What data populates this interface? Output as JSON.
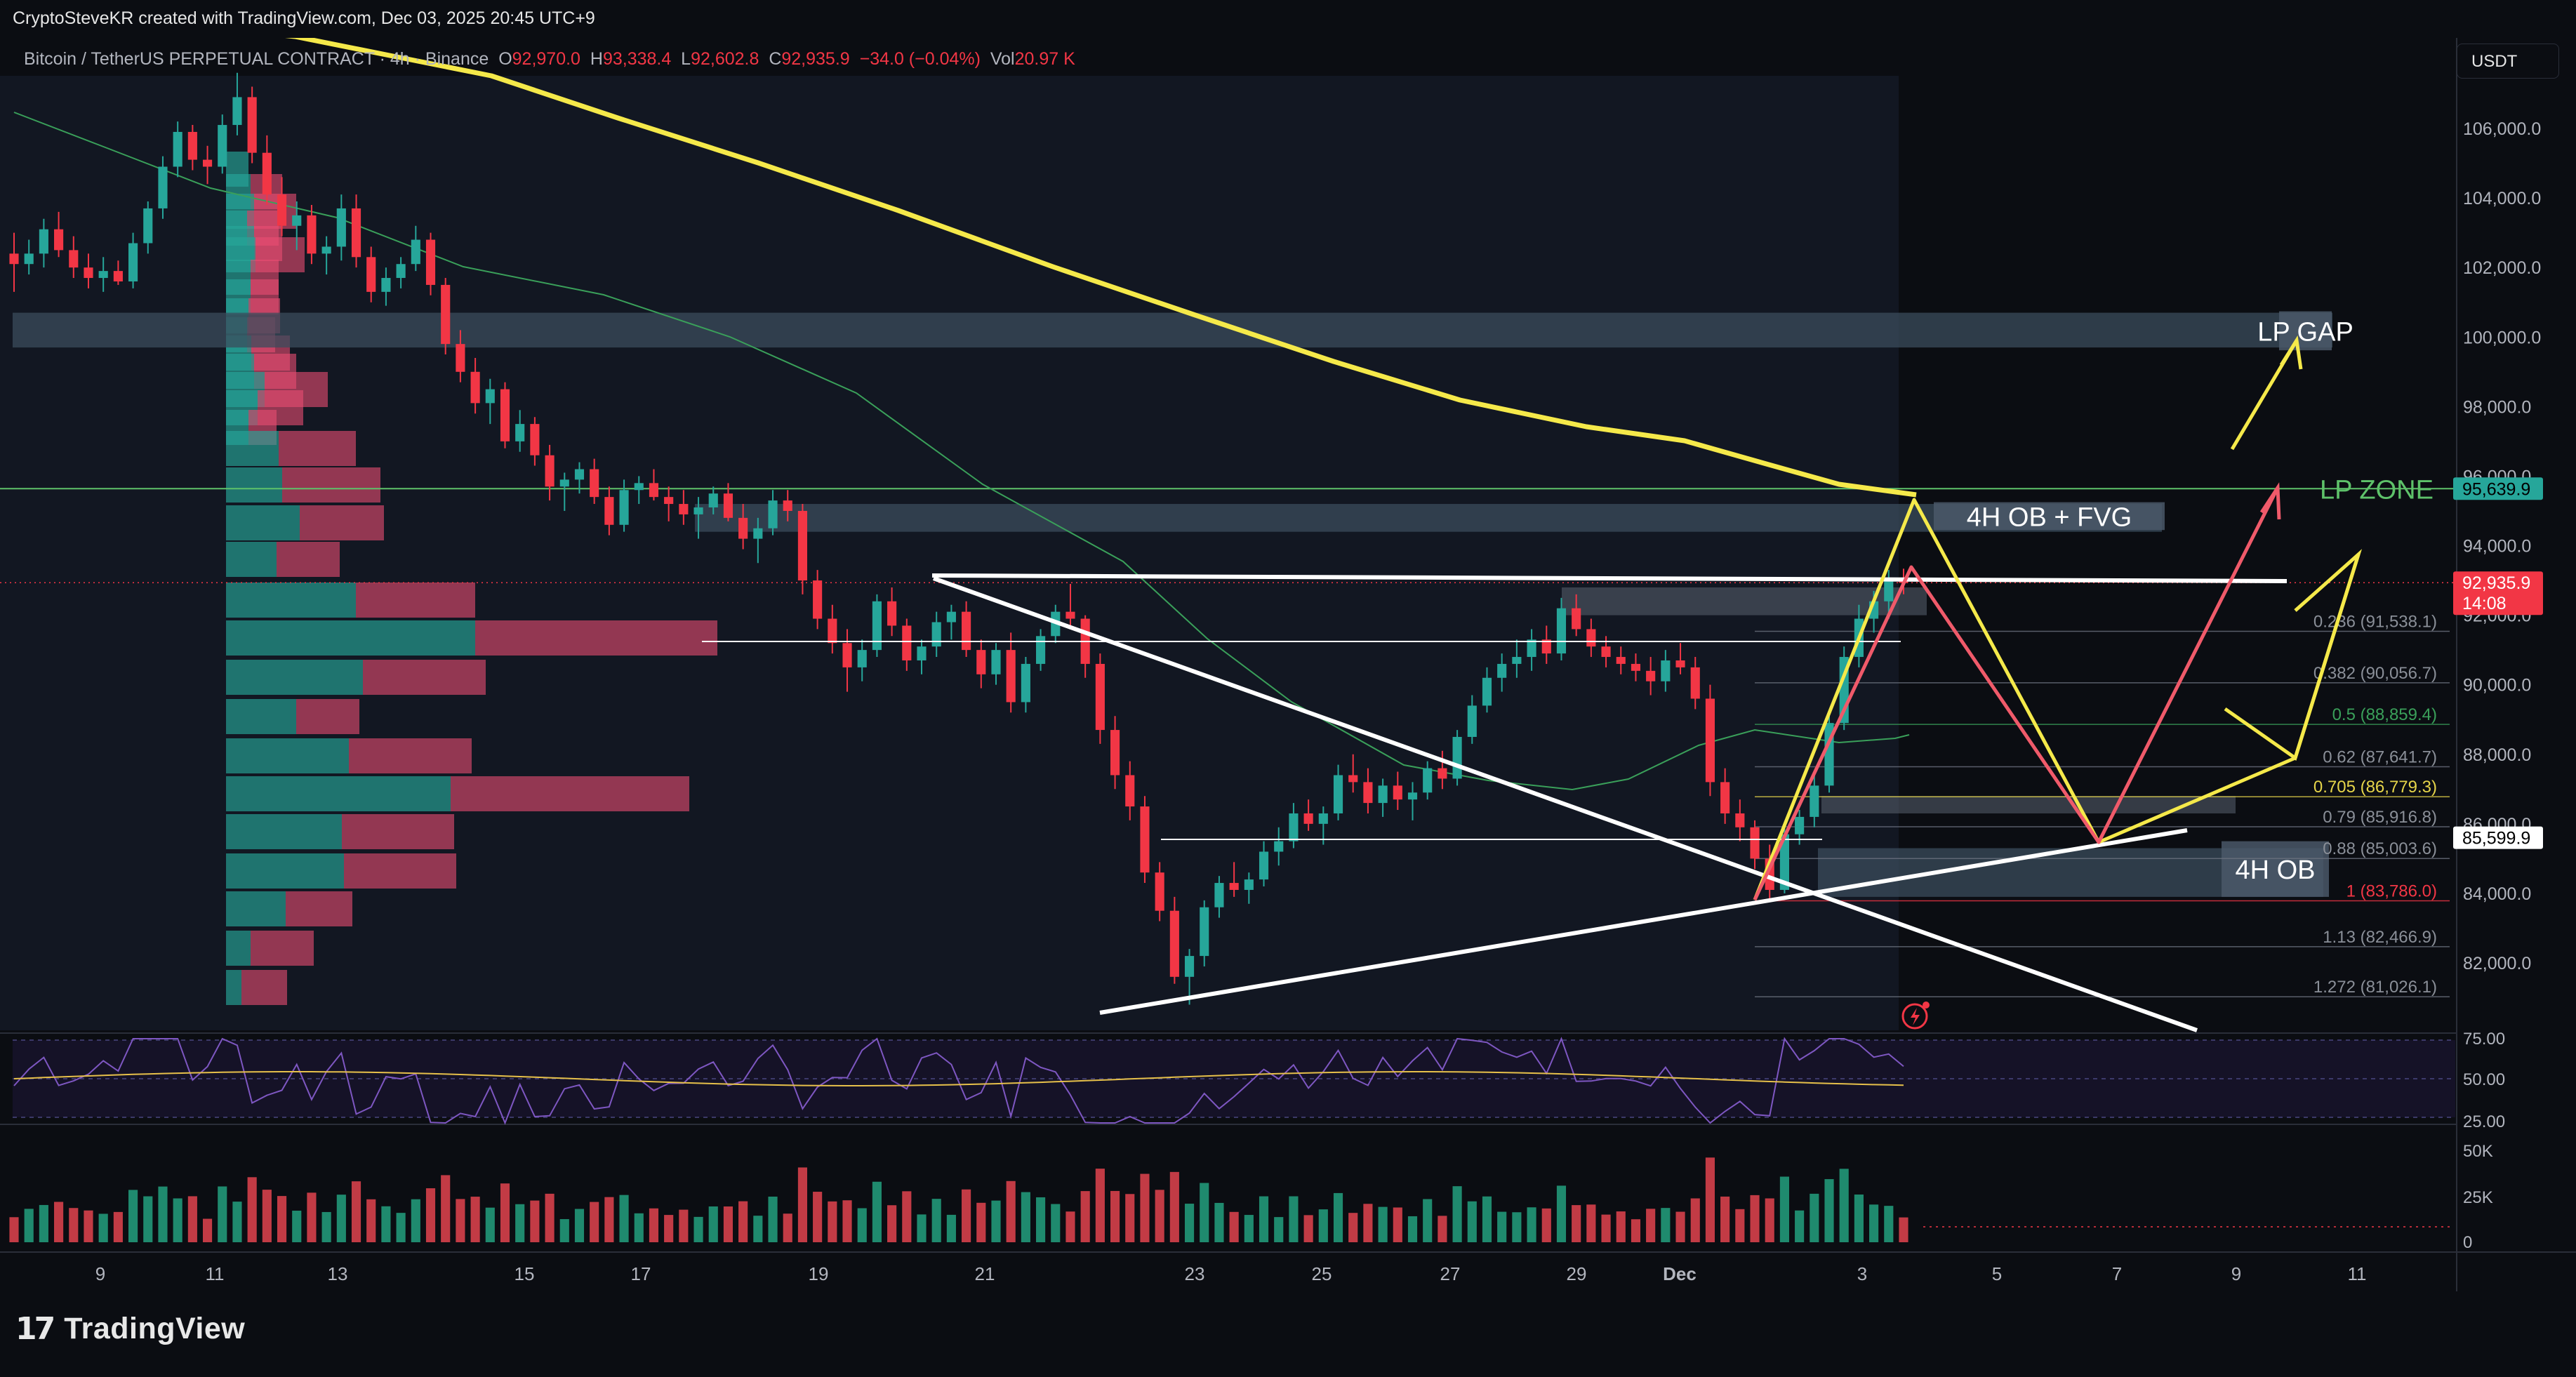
{
  "header": {
    "credit": "CryptoSteveKR created with TradingView.com, Dec 03, 2025 20:45 UTC+9"
  },
  "symbol": {
    "name": "Bitcoin / TetherUS PERPETUAL CONTRACT · 4h · Binance",
    "o_label": "O",
    "o": "92,970.0",
    "h_label": "H",
    "h": "93,338.4",
    "l_label": "L",
    "l": "92,602.8",
    "c_label": "C",
    "c": "92,935.9",
    "change": "−34.0 (−0.04%)",
    "vol_label": "Vol",
    "vol": "20.97 K"
  },
  "currency": "USDT",
  "footer": {
    "brand": "TradingView"
  },
  "colors": {
    "up": "#26a69a",
    "down": "#f23645",
    "ema": "#f5e94a",
    "sma": "#3aa05a",
    "lp_zone": "#5ec26a"
  },
  "chart_data": {
    "type": "candlestick",
    "price_axis": {
      "ticks": [
        "106,000.0",
        "104,000.0",
        "102,000.0",
        "100,000.0",
        "98,000.0",
        "96,000.0",
        "94,000.0",
        "92,000.0",
        "90,000.0",
        "88,000.0",
        "86,000.0",
        "84,000.0",
        "82,000.0"
      ],
      "range": [
        80500,
        107600
      ]
    },
    "time_axis": {
      "ticks": [
        "9",
        "11",
        "13",
        "15",
        "17",
        "19",
        "21",
        "23",
        "25",
        "27",
        "29",
        "Dec",
        "3",
        "5",
        "7",
        "9",
        "11"
      ]
    },
    "price_labels": [
      {
        "text": "95,639.9",
        "style": "green"
      },
      {
        "text": "92,935.9",
        "sub": "14:08",
        "style": "red"
      },
      {
        "text": "85,599.9",
        "style": "white"
      }
    ],
    "zones": [
      {
        "label": "LP GAP",
        "from": 99700,
        "to": 100700
      },
      {
        "label": "4H OB + FVG",
        "from": 94400,
        "to": 95200
      },
      {
        "label": "4H OB",
        "from": 83900,
        "to": 85300
      }
    ],
    "level_line": {
      "label": "LP ZONE",
      "price": 95639.9
    },
    "fib_levels": [
      {
        "level": "0.236",
        "price": "91,538.1"
      },
      {
        "level": "0.382",
        "price": "90,056.7"
      },
      {
        "level": "0.5",
        "price": "88,859.4"
      },
      {
        "level": "0.62",
        "price": "87,641.7"
      },
      {
        "level": "0.705",
        "price": "86,779.3"
      },
      {
        "level": "0.79",
        "price": "85,916.8"
      },
      {
        "level": "0.88",
        "price": "85,003.6"
      },
      {
        "level": "1",
        "price": "83,786.0"
      },
      {
        "level": "1.13",
        "price": "82,466.9"
      },
      {
        "level": "1.272",
        "price": "81,026.1"
      }
    ],
    "candles_ohlc": [
      [
        102400,
        103000,
        101300,
        102100
      ],
      [
        102100,
        102800,
        101800,
        102400
      ],
      [
        102400,
        103400,
        102000,
        103100
      ],
      [
        103100,
        103600,
        102300,
        102500
      ],
      [
        102500,
        102900,
        101700,
        102000
      ],
      [
        102000,
        102400,
        101400,
        101700
      ],
      [
        101700,
        102300,
        101300,
        101900
      ],
      [
        101900,
        102200,
        101500,
        101600
      ],
      [
        101600,
        103000,
        101400,
        102700
      ],
      [
        102700,
        103900,
        102400,
        103700
      ],
      [
        103700,
        105200,
        103400,
        104900
      ],
      [
        104900,
        106200,
        104600,
        105900
      ],
      [
        105900,
        106100,
        104800,
        105100
      ],
      [
        105100,
        105500,
        104400,
        104900
      ],
      [
        104900,
        106400,
        104700,
        106100
      ],
      [
        106100,
        107600,
        105800,
        106900
      ],
      [
        106900,
        107200,
        105000,
        105300
      ],
      [
        105300,
        105800,
        103800,
        104100
      ],
      [
        104100,
        104600,
        102900,
        103200
      ],
      [
        103200,
        103900,
        102500,
        103500
      ],
      [
        103500,
        103800,
        102100,
        102400
      ],
      [
        102400,
        102900,
        101800,
        102600
      ],
      [
        102600,
        104100,
        102200,
        103700
      ],
      [
        103700,
        104100,
        102000,
        102300
      ],
      [
        102300,
        102600,
        101000,
        101300
      ],
      [
        101300,
        102000,
        100900,
        101700
      ],
      [
        101700,
        102300,
        101400,
        102100
      ],
      [
        102100,
        103200,
        101900,
        102800
      ],
      [
        102800,
        103000,
        101200,
        101500
      ],
      [
        101500,
        101700,
        99500,
        99800
      ],
      [
        99800,
        100200,
        98700,
        99000
      ],
      [
        99000,
        99400,
        97800,
        98100
      ],
      [
        98100,
        98800,
        97500,
        98500
      ],
      [
        98500,
        98700,
        96800,
        97000
      ],
      [
        97000,
        97900,
        96700,
        97500
      ],
      [
        97500,
        97700,
        96300,
        96600
      ],
      [
        96600,
        96900,
        95300,
        95700
      ],
      [
        95700,
        96100,
        95000,
        95900
      ],
      [
        95900,
        96400,
        95500,
        96200
      ],
      [
        96200,
        96500,
        95200,
        95400
      ],
      [
        95400,
        95700,
        94300,
        94600
      ],
      [
        94600,
        95900,
        94400,
        95600
      ],
      [
        95600,
        96000,
        95200,
        95800
      ],
      [
        95800,
        96200,
        95300,
        95400
      ],
      [
        95400,
        95700,
        94700,
        95200
      ],
      [
        95200,
        95600,
        94600,
        94900
      ],
      [
        94900,
        95400,
        94200,
        95100
      ],
      [
        95100,
        95700,
        94900,
        95500
      ],
      [
        95500,
        95800,
        94700,
        94800
      ],
      [
        94800,
        95200,
        93900,
        94200
      ],
      [
        94200,
        94800,
        93500,
        94500
      ],
      [
        94500,
        95600,
        94300,
        95300
      ],
      [
        95300,
        95600,
        94700,
        95000
      ],
      [
        95000,
        95200,
        92600,
        93000
      ],
      [
        93000,
        93300,
        91600,
        91900
      ],
      [
        91900,
        92300,
        90900,
        91200
      ],
      [
        91200,
        91600,
        89800,
        90500
      ],
      [
        90500,
        91300,
        90100,
        91000
      ],
      [
        91000,
        92600,
        90800,
        92400
      ],
      [
        92400,
        92800,
        91400,
        91700
      ],
      [
        91700,
        91900,
        90400,
        90700
      ],
      [
        90700,
        91300,
        90300,
        91100
      ],
      [
        91100,
        92100,
        90800,
        91800
      ],
      [
        91800,
        92300,
        91300,
        92100
      ],
      [
        92100,
        92400,
        90800,
        91000
      ],
      [
        91000,
        91300,
        89900,
        90300
      ],
      [
        90300,
        91200,
        90000,
        91000
      ],
      [
        91000,
        91500,
        89200,
        89500
      ],
      [
        89500,
        90800,
        89200,
        90600
      ],
      [
        90600,
        91600,
        90400,
        91400
      ],
      [
        91400,
        92300,
        91200,
        92100
      ],
      [
        92100,
        92900,
        91700,
        91900
      ],
      [
        91900,
        92000,
        90200,
        90600
      ],
      [
        90600,
        90900,
        88300,
        88700
      ],
      [
        88700,
        89100,
        87000,
        87400
      ],
      [
        87400,
        87800,
        86100,
        86500
      ],
      [
        86500,
        86800,
        84300,
        84600
      ],
      [
        84600,
        84900,
        83200,
        83500
      ],
      [
        83500,
        83900,
        81400,
        81600
      ],
      [
        81600,
        82400,
        80800,
        82200
      ],
      [
        82200,
        83800,
        81900,
        83600
      ],
      [
        83600,
        84500,
        83300,
        84300
      ],
      [
        84300,
        84900,
        83900,
        84100
      ],
      [
        84100,
        84600,
        83700,
        84400
      ],
      [
        84400,
        85500,
        84200,
        85200
      ],
      [
        85200,
        85900,
        84800,
        85500
      ],
      [
        85500,
        86600,
        85300,
        86300
      ],
      [
        86300,
        86700,
        85800,
        86000
      ],
      [
        86000,
        86500,
        85400,
        86300
      ],
      [
        86300,
        87700,
        86100,
        87400
      ],
      [
        87400,
        88000,
        86900,
        87200
      ],
      [
        87200,
        87600,
        86300,
        86600
      ],
      [
        86600,
        87300,
        86200,
        87100
      ],
      [
        87100,
        87500,
        86400,
        86700
      ],
      [
        86700,
        87200,
        86100,
        86900
      ],
      [
        86900,
        87800,
        86700,
        87600
      ],
      [
        87600,
        88100,
        87000,
        87300
      ],
      [
        87300,
        88700,
        87100,
        88500
      ],
      [
        88500,
        89700,
        88300,
        89400
      ],
      [
        89400,
        90500,
        89200,
        90200
      ],
      [
        90200,
        90900,
        89800,
        90600
      ],
      [
        90600,
        91300,
        90200,
        90800
      ],
      [
        90800,
        91600,
        90400,
        91300
      ],
      [
        91300,
        91700,
        90600,
        90900
      ],
      [
        90900,
        92500,
        90700,
        92200
      ],
      [
        92200,
        92600,
        91400,
        91600
      ],
      [
        91600,
        91900,
        90800,
        91100
      ],
      [
        91100,
        91400,
        90500,
        90800
      ],
      [
        90800,
        91100,
        90300,
        90600
      ],
      [
        90600,
        90900,
        90100,
        90400
      ],
      [
        90400,
        90800,
        89700,
        90100
      ],
      [
        90100,
        91000,
        89800,
        90700
      ],
      [
        90700,
        91200,
        90300,
        90500
      ],
      [
        90500,
        90800,
        89300,
        89600
      ],
      [
        89600,
        90000,
        86800,
        87200
      ],
      [
        87200,
        87600,
        86000,
        86300
      ],
      [
        86300,
        86700,
        85500,
        85900
      ],
      [
        85900,
        86100,
        84700,
        85000
      ],
      [
        85000,
        85400,
        83800,
        84100
      ],
      [
        84100,
        85900,
        84000,
        85700
      ],
      [
        85700,
        86400,
        85400,
        86200
      ],
      [
        86200,
        87400,
        85900,
        87100
      ],
      [
        87100,
        89200,
        86900,
        88900
      ],
      [
        88900,
        91100,
        88700,
        90800
      ],
      [
        90800,
        92300,
        90500,
        91900
      ],
      [
        91900,
        92700,
        91500,
        92400
      ],
      [
        92400,
        93300,
        91900,
        92970
      ],
      [
        92970,
        93338,
        92603,
        92936
      ]
    ],
    "rsi": {
      "levels": [
        "75.00",
        "50.00",
        "25.00"
      ]
    },
    "volume": {
      "levels": [
        "50K",
        "25K",
        "0"
      ]
    }
  }
}
